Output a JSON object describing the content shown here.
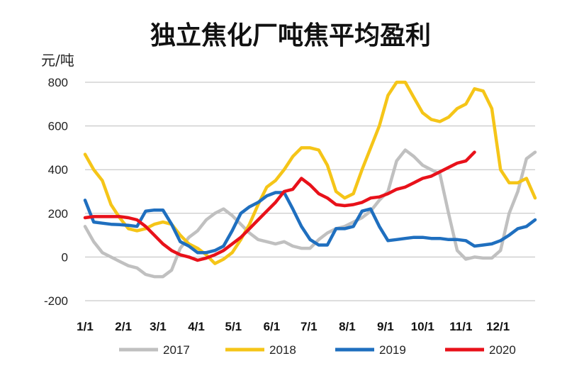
{
  "chart_data": {
    "type": "line",
    "title": "独立焦化厂吨焦平均盈利",
    "ylabel": "元/吨",
    "ylim": [
      -200,
      800
    ],
    "yticks": [
      800,
      600,
      400,
      200,
      0,
      -200
    ],
    "xlim": [
      0,
      52
    ],
    "xticks": [
      {
        "label": "1/1",
        "week": 0
      },
      {
        "label": "2/1",
        "week": 4.43
      },
      {
        "label": "3/1",
        "week": 8.43
      },
      {
        "label": "4/1",
        "week": 12.86
      },
      {
        "label": "5/1",
        "week": 17.14
      },
      {
        "label": "6/1",
        "week": 21.57
      },
      {
        "label": "7/1",
        "week": 25.86
      },
      {
        "label": "8/1",
        "week": 30.29
      },
      {
        "label": "9/1",
        "week": 34.71
      },
      {
        "label": "10/1",
        "week": 39
      },
      {
        "label": "11/1",
        "week": 43.43
      },
      {
        "label": "12/1",
        "week": 47.71
      }
    ],
    "grid": true,
    "legend_position": "bottom",
    "series": [
      {
        "name": "2017",
        "color": "#c0c0c0",
        "x": [
          0,
          1,
          2,
          3,
          4,
          5,
          6,
          7,
          8,
          9,
          10,
          11,
          12,
          13,
          14,
          15,
          16,
          17,
          18,
          19,
          20,
          21,
          22,
          23,
          24,
          25,
          26,
          27,
          28,
          29,
          30,
          31,
          32,
          33,
          34,
          35,
          36,
          37,
          38,
          39,
          40,
          41,
          42,
          43,
          44,
          45,
          46,
          47,
          48,
          49,
          50,
          51,
          52
        ],
        "values": [
          140,
          70,
          20,
          0,
          -20,
          -40,
          -50,
          -80,
          -90,
          -90,
          -60,
          40,
          90,
          120,
          170,
          200,
          220,
          190,
          150,
          110,
          80,
          70,
          60,
          70,
          50,
          40,
          40,
          80,
          110,
          130,
          140,
          160,
          180,
          210,
          260,
          300,
          440,
          490,
          460,
          420,
          400,
          380,
          200,
          30,
          -10,
          0,
          -5,
          -5,
          30,
          200,
          300,
          450,
          480
        ]
      },
      {
        "name": "2018",
        "color": "#f5c518",
        "x": [
          0,
          1,
          2,
          3,
          4,
          5,
          6,
          7,
          8,
          9,
          10,
          11,
          12,
          13,
          14,
          15,
          16,
          17,
          18,
          19,
          20,
          21,
          22,
          23,
          24,
          25,
          26,
          27,
          28,
          29,
          30,
          31,
          32,
          33,
          34,
          35,
          36,
          37,
          38,
          39,
          40,
          41,
          42,
          43,
          44,
          45,
          46,
          47,
          48,
          49,
          50,
          51,
          52
        ],
        "values": [
          470,
          400,
          350,
          240,
          180,
          130,
          120,
          130,
          150,
          160,
          150,
          100,
          60,
          40,
          10,
          -30,
          -10,
          20,
          80,
          150,
          240,
          320,
          350,
          400,
          460,
          500,
          500,
          490,
          420,
          300,
          270,
          290,
          400,
          500,
          600,
          740,
          800,
          800,
          730,
          660,
          630,
          620,
          640,
          680,
          700,
          770,
          760,
          680,
          400,
          340,
          340,
          360,
          270
        ]
      },
      {
        "name": "2019",
        "color": "#1f6fbf",
        "x": [
          0,
          1,
          2,
          3,
          4,
          5,
          6,
          7,
          8,
          9,
          10,
          11,
          12,
          13,
          14,
          15,
          16,
          17,
          18,
          19,
          20,
          21,
          22,
          23,
          24,
          25,
          26,
          27,
          28,
          29,
          30,
          31,
          32,
          33,
          34,
          35,
          36,
          37,
          38,
          39,
          40,
          41,
          42,
          43,
          44,
          45,
          46,
          47,
          48,
          49,
          50,
          51,
          52
        ],
        "values": [
          260,
          160,
          155,
          150,
          148,
          145,
          140,
          210,
          215,
          215,
          150,
          70,
          50,
          20,
          20,
          30,
          50,
          120,
          200,
          230,
          250,
          280,
          295,
          295,
          220,
          140,
          80,
          55,
          55,
          130,
          130,
          140,
          210,
          220,
          140,
          75,
          80,
          85,
          90,
          90,
          85,
          85,
          80,
          80,
          75,
          50,
          55,
          60,
          75,
          100,
          130,
          140,
          170
        ]
      },
      {
        "name": "2020",
        "color": "#e8111a",
        "x": [
          0,
          1,
          2,
          3,
          4,
          5,
          6,
          7,
          8,
          9,
          10,
          11,
          12,
          13,
          14,
          15,
          16,
          17,
          18,
          19,
          20,
          21,
          22,
          23,
          24,
          25,
          26,
          27,
          28,
          29,
          30,
          31,
          32,
          33,
          34,
          35,
          36,
          37,
          38,
          39,
          40,
          41,
          42,
          43,
          44,
          45
        ],
        "values": [
          180,
          185,
          185,
          185,
          185,
          180,
          170,
          140,
          100,
          60,
          30,
          10,
          0,
          -15,
          -5,
          10,
          30,
          60,
          90,
          130,
          170,
          210,
          250,
          300,
          310,
          360,
          330,
          290,
          270,
          240,
          235,
          240,
          250,
          270,
          275,
          290,
          310,
          320,
          340,
          360,
          370,
          390,
          410,
          430,
          440,
          480
        ]
      }
    ]
  }
}
